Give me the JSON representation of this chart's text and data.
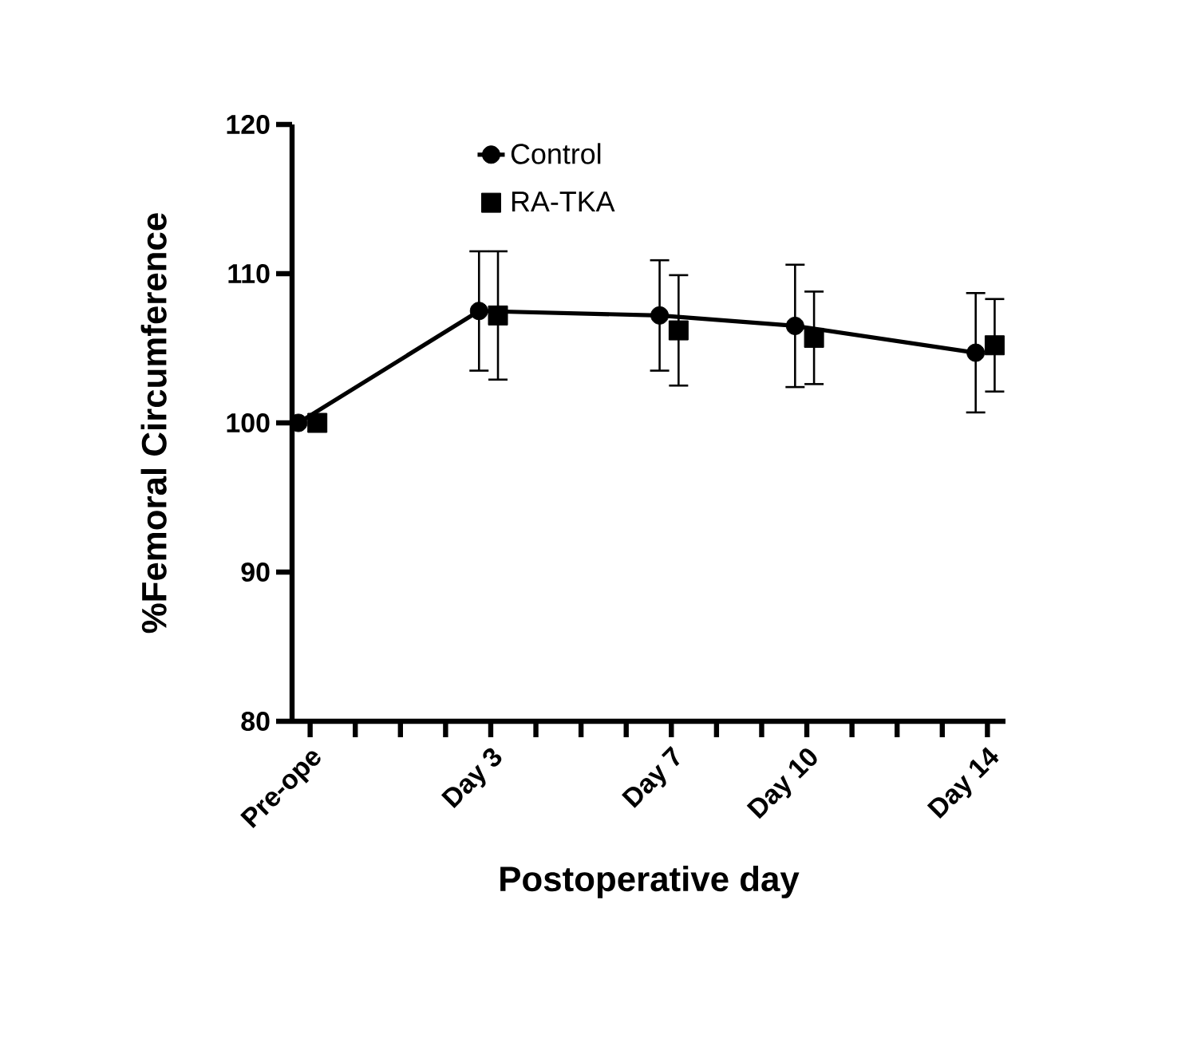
{
  "chart_data": {
    "type": "line",
    "xlabel": "Postoperative day",
    "ylabel": "%Femoral Circumference",
    "categories": [
      "Pre-ope",
      null,
      null,
      null,
      "Day 3",
      null,
      null,
      null,
      "Day 7",
      null,
      null,
      "Day 10",
      null,
      null,
      null,
      "Day 14"
    ],
    "ylim": [
      80,
      120
    ],
    "yticks": [
      80,
      90,
      100,
      110,
      120
    ],
    "legend": "top",
    "series": [
      {
        "name": "Control",
        "marker": "circle",
        "line_style": "solid",
        "color": "#000000",
        "values": [
          100,
          null,
          null,
          null,
          107.5,
          null,
          null,
          null,
          107.2,
          null,
          null,
          106.5,
          null,
          null,
          null,
          104.7
        ],
        "errors": [
          null,
          null,
          null,
          null,
          4,
          null,
          null,
          null,
          3.7,
          null,
          null,
          4.1,
          null,
          null,
          null,
          4
        ]
      },
      {
        "name": "RA-TKA",
        "type": "scatter",
        "marker": "square",
        "color": "#000000",
        "values": [
          100,
          null,
          null,
          null,
          107.2,
          null,
          null,
          null,
          106.2,
          null,
          null,
          105.7,
          null,
          null,
          null,
          105.2
        ],
        "errors": [
          null,
          null,
          null,
          null,
          4.3,
          null,
          null,
          null,
          3.7,
          null,
          null,
          3.1,
          null,
          null,
          null,
          3.1
        ]
      }
    ]
  }
}
